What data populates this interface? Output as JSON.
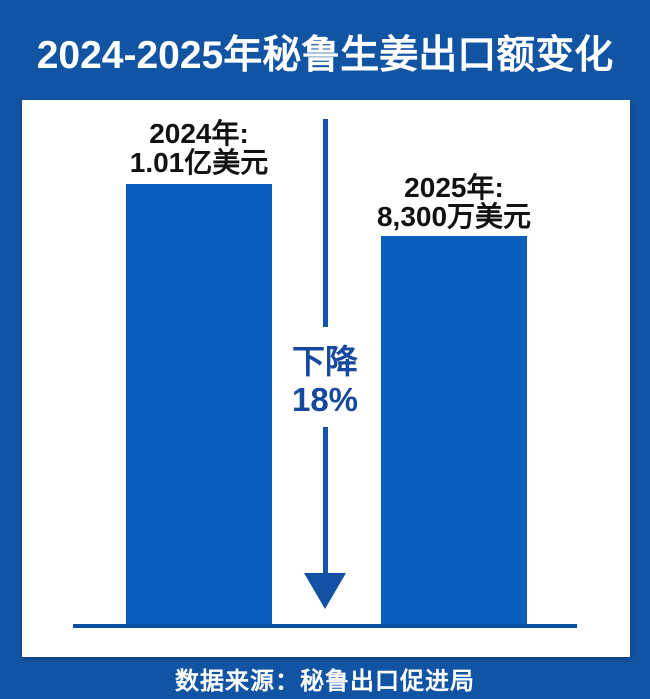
{
  "title": "2024-2025年秘鲁生姜出口额变化",
  "footer": "数据来源：秘鲁出口促进局",
  "bars": [
    {
      "year_label": "2024年:",
      "value_label": "1.01亿美元"
    },
    {
      "year_label": "2025年:",
      "value_label": "8,300万美元"
    }
  ],
  "annotation": {
    "line1": "下降",
    "line2": "18%"
  },
  "colors": {
    "background": "#1254A4",
    "card": "#FFFFFF",
    "bar": "#0C5EBC",
    "arrow": "#1351A5",
    "annotation_text": "#16489D",
    "baseline": "#0C4FA0",
    "title_text": "#FFFFFF",
    "label_text": "#121212"
  },
  "chart_data": {
    "type": "bar",
    "title": "2024-2025年秘鲁生姜出口额变化",
    "categories": [
      "2024年",
      "2025年"
    ],
    "values": [
      101000000,
      83000000
    ],
    "value_labels": [
      "1.01亿美元",
      "8,300万美元"
    ],
    "unit": "美元",
    "change_percent": -18,
    "annotation": "下降18%",
    "source": "数据来源：秘鲁出口促进局",
    "xlabel": "",
    "ylabel": "",
    "grid": false,
    "legend": false,
    "orientation": "vertical"
  }
}
